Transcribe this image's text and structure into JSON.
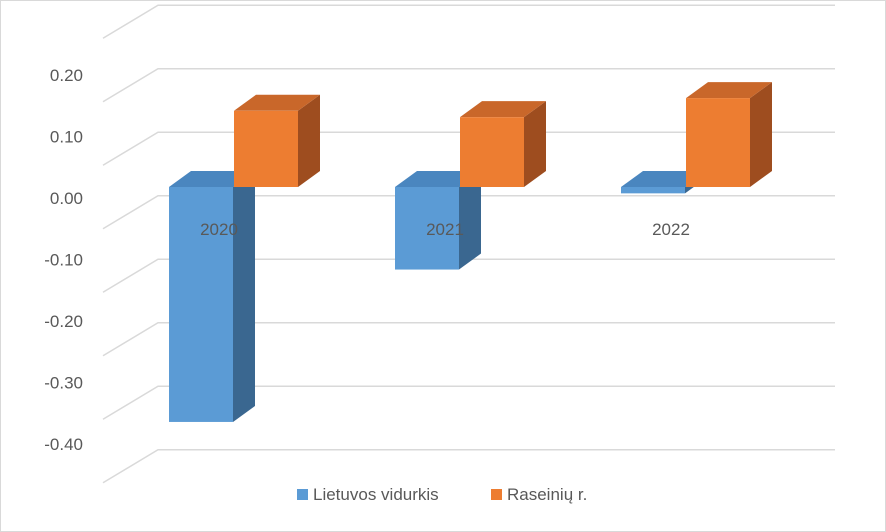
{
  "chart_data": {
    "type": "bar",
    "style": "3d-clustered-column",
    "categories": [
      "2020",
      "2021",
      "2022"
    ],
    "series": [
      {
        "name": "Lietuvos vidurkis",
        "values": [
          -0.37,
          -0.13,
          -0.01
        ]
      },
      {
        "name": "Raseinių r.",
        "values": [
          0.12,
          0.11,
          0.14
        ]
      }
    ],
    "y_ticks": [
      "0.20",
      "0.10",
      "0.00",
      "-0.10",
      "-0.20",
      "-0.30",
      "-0.40"
    ],
    "ylim": [
      -0.4,
      0.25
    ],
    "grid": true,
    "legend_position": "bottom",
    "colors": {
      "series_front": [
        "#5b9bd5",
        "#ed7d31"
      ],
      "series_top": [
        "#4a86bf",
        "#c9672a"
      ],
      "series_side": [
        "#3a6790",
        "#9e4d1f"
      ],
      "gridline": "#d9d9d9",
      "text": "#595959"
    }
  }
}
